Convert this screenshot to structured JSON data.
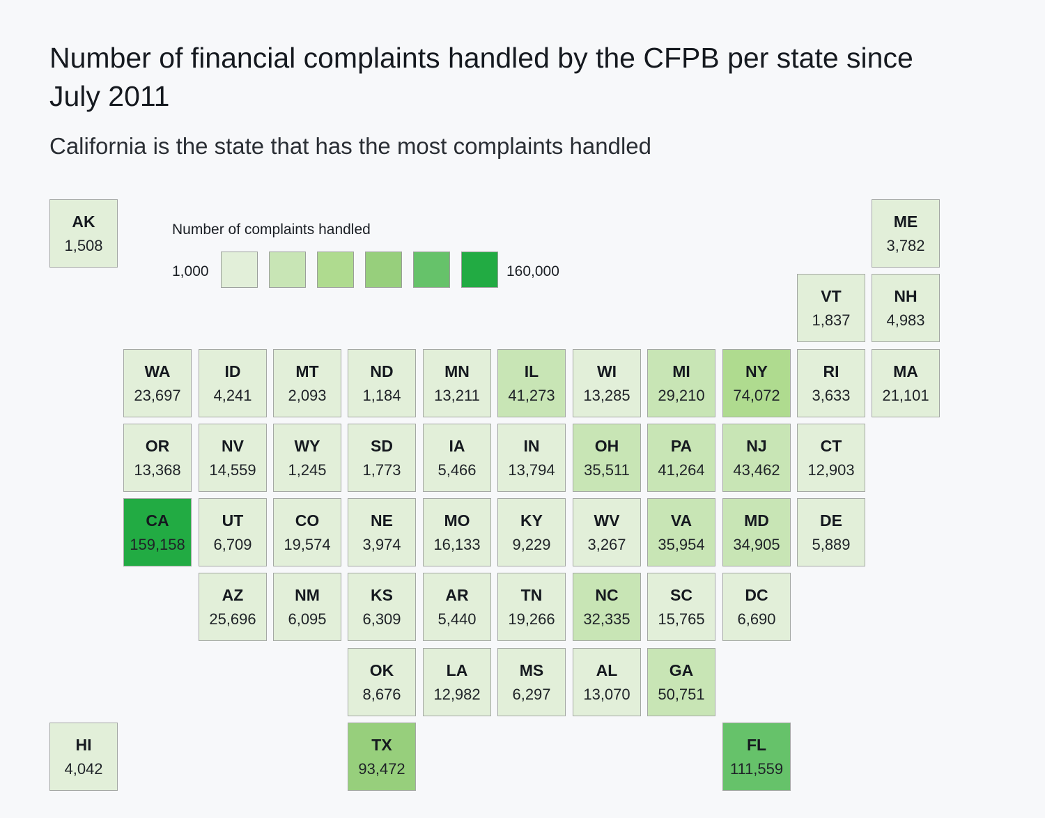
{
  "header": {
    "title": "Number of financial complaints handled by the CFPB per state since July 2011",
    "subtitle": "California is the state that has the most complaints handled"
  },
  "legend": {
    "title": "Number of complaints handled",
    "min_label": "1,000",
    "max_label": "160,000",
    "colors": [
      "#e2efd9",
      "#c8e5b5",
      "#afdb8f",
      "#97cf7c",
      "#66c26a",
      "#22ab43"
    ]
  },
  "tiles": [
    {
      "abbr": "AK",
      "value": "1,508",
      "col": 0,
      "row": 0,
      "bin": 0
    },
    {
      "abbr": "ME",
      "value": "3,782",
      "col": 11,
      "row": 0,
      "bin": 0
    },
    {
      "abbr": "VT",
      "value": "1,837",
      "col": 10,
      "row": 1,
      "bin": 0
    },
    {
      "abbr": "NH",
      "value": "4,983",
      "col": 11,
      "row": 1,
      "bin": 0
    },
    {
      "abbr": "WA",
      "value": "23,697",
      "col": 1,
      "row": 2,
      "bin": 0
    },
    {
      "abbr": "ID",
      "value": "4,241",
      "col": 2,
      "row": 2,
      "bin": 0
    },
    {
      "abbr": "MT",
      "value": "2,093",
      "col": 3,
      "row": 2,
      "bin": 0
    },
    {
      "abbr": "ND",
      "value": "1,184",
      "col": 4,
      "row": 2,
      "bin": 0
    },
    {
      "abbr": "MN",
      "value": "13,211",
      "col": 5,
      "row": 2,
      "bin": 0
    },
    {
      "abbr": "IL",
      "value": "41,273",
      "col": 6,
      "row": 2,
      "bin": 1
    },
    {
      "abbr": "WI",
      "value": "13,285",
      "col": 7,
      "row": 2,
      "bin": 0
    },
    {
      "abbr": "MI",
      "value": "29,210",
      "col": 8,
      "row": 2,
      "bin": 1
    },
    {
      "abbr": "NY",
      "value": "74,072",
      "col": 9,
      "row": 2,
      "bin": 2
    },
    {
      "abbr": "RI",
      "value": "3,633",
      "col": 10,
      "row": 2,
      "bin": 0
    },
    {
      "abbr": "MA",
      "value": "21,101",
      "col": 11,
      "row": 2,
      "bin": 0
    },
    {
      "abbr": "OR",
      "value": "13,368",
      "col": 1,
      "row": 3,
      "bin": 0
    },
    {
      "abbr": "NV",
      "value": "14,559",
      "col": 2,
      "row": 3,
      "bin": 0
    },
    {
      "abbr": "WY",
      "value": "1,245",
      "col": 3,
      "row": 3,
      "bin": 0
    },
    {
      "abbr": "SD",
      "value": "1,773",
      "col": 4,
      "row": 3,
      "bin": 0
    },
    {
      "abbr": "IA",
      "value": "5,466",
      "col": 5,
      "row": 3,
      "bin": 0
    },
    {
      "abbr": "IN",
      "value": "13,794",
      "col": 6,
      "row": 3,
      "bin": 0
    },
    {
      "abbr": "OH",
      "value": "35,511",
      "col": 7,
      "row": 3,
      "bin": 1
    },
    {
      "abbr": "PA",
      "value": "41,264",
      "col": 8,
      "row": 3,
      "bin": 1
    },
    {
      "abbr": "NJ",
      "value": "43,462",
      "col": 9,
      "row": 3,
      "bin": 1
    },
    {
      "abbr": "CT",
      "value": "12,903",
      "col": 10,
      "row": 3,
      "bin": 0
    },
    {
      "abbr": "CA",
      "value": "159,158",
      "col": 1,
      "row": 4,
      "bin": 5
    },
    {
      "abbr": "UT",
      "value": "6,709",
      "col": 2,
      "row": 4,
      "bin": 0
    },
    {
      "abbr": "CO",
      "value": "19,574",
      "col": 3,
      "row": 4,
      "bin": 0
    },
    {
      "abbr": "NE",
      "value": "3,974",
      "col": 4,
      "row": 4,
      "bin": 0
    },
    {
      "abbr": "MO",
      "value": "16,133",
      "col": 5,
      "row": 4,
      "bin": 0
    },
    {
      "abbr": "KY",
      "value": "9,229",
      "col": 6,
      "row": 4,
      "bin": 0
    },
    {
      "abbr": "WV",
      "value": "3,267",
      "col": 7,
      "row": 4,
      "bin": 0
    },
    {
      "abbr": "VA",
      "value": "35,954",
      "col": 8,
      "row": 4,
      "bin": 1
    },
    {
      "abbr": "MD",
      "value": "34,905",
      "col": 9,
      "row": 4,
      "bin": 1
    },
    {
      "abbr": "DE",
      "value": "5,889",
      "col": 10,
      "row": 4,
      "bin": 0
    },
    {
      "abbr": "AZ",
      "value": "25,696",
      "col": 2,
      "row": 5,
      "bin": 0
    },
    {
      "abbr": "NM",
      "value": "6,095",
      "col": 3,
      "row": 5,
      "bin": 0
    },
    {
      "abbr": "KS",
      "value": "6,309",
      "col": 4,
      "row": 5,
      "bin": 0
    },
    {
      "abbr": "AR",
      "value": "5,440",
      "col": 5,
      "row": 5,
      "bin": 0
    },
    {
      "abbr": "TN",
      "value": "19,266",
      "col": 6,
      "row": 5,
      "bin": 0
    },
    {
      "abbr": "NC",
      "value": "32,335",
      "col": 7,
      "row": 5,
      "bin": 1
    },
    {
      "abbr": "SC",
      "value": "15,765",
      "col": 8,
      "row": 5,
      "bin": 0
    },
    {
      "abbr": "DC",
      "value": "6,690",
      "col": 9,
      "row": 5,
      "bin": 0
    },
    {
      "abbr": "OK",
      "value": "8,676",
      "col": 4,
      "row": 6,
      "bin": 0
    },
    {
      "abbr": "LA",
      "value": "12,982",
      "col": 5,
      "row": 6,
      "bin": 0
    },
    {
      "abbr": "MS",
      "value": "6,297",
      "col": 6,
      "row": 6,
      "bin": 0
    },
    {
      "abbr": "AL",
      "value": "13,070",
      "col": 7,
      "row": 6,
      "bin": 0
    },
    {
      "abbr": "GA",
      "value": "50,751",
      "col": 8,
      "row": 6,
      "bin": 1
    },
    {
      "abbr": "HI",
      "value": "4,042",
      "col": 0,
      "row": 7,
      "bin": 0
    },
    {
      "abbr": "TX",
      "value": "93,472",
      "col": 4,
      "row": 7,
      "bin": 3
    },
    {
      "abbr": "FL",
      "value": "111,559",
      "col": 9,
      "row": 7,
      "bin": 4
    }
  ],
  "chart_data": {
    "type": "heatmap",
    "title": "Number of financial complaints handled by the CFPB per state since July 2011",
    "subtitle": "California is the state that has the most complaints handled",
    "legend": {
      "title": "Number of complaints handled",
      "min": 1000,
      "max": 160000,
      "bins": 6,
      "position": "top-left"
    },
    "categories": [
      "AK",
      "ME",
      "VT",
      "NH",
      "WA",
      "ID",
      "MT",
      "ND",
      "MN",
      "IL",
      "WI",
      "MI",
      "NY",
      "RI",
      "MA",
      "OR",
      "NV",
      "WY",
      "SD",
      "IA",
      "IN",
      "OH",
      "PA",
      "NJ",
      "CT",
      "CA",
      "UT",
      "CO",
      "NE",
      "MO",
      "KY",
      "WV",
      "VA",
      "MD",
      "DE",
      "AZ",
      "NM",
      "KS",
      "AR",
      "TN",
      "NC",
      "SC",
      "DC",
      "OK",
      "LA",
      "MS",
      "AL",
      "GA",
      "HI",
      "TX",
      "FL"
    ],
    "values": [
      1508,
      3782,
      1837,
      4983,
      23697,
      4241,
      2093,
      1184,
      13211,
      41273,
      13285,
      29210,
      74072,
      3633,
      21101,
      13368,
      14559,
      1245,
      1773,
      5466,
      13794,
      35511,
      41264,
      43462,
      12903,
      159158,
      6709,
      19574,
      3974,
      16133,
      9229,
      3267,
      35954,
      34905,
      5889,
      25696,
      6095,
      6309,
      5440,
      19266,
      32335,
      15765,
      6690,
      8676,
      12982,
      6297,
      13070,
      50751,
      4042,
      93472,
      111559
    ]
  }
}
